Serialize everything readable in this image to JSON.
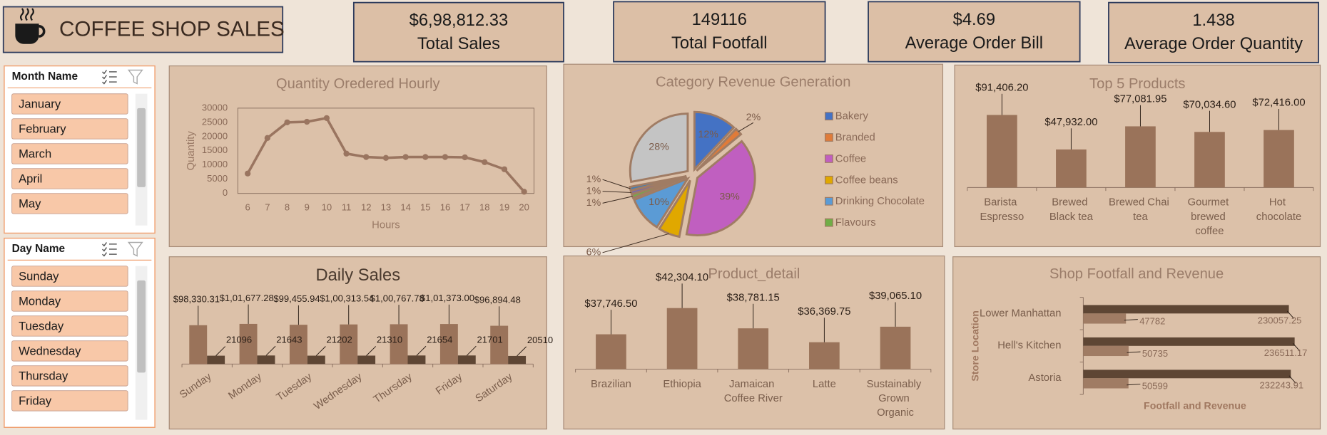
{
  "header": {
    "title": "COFFEE SHOP SALES"
  },
  "kpis": [
    {
      "value": "$6,98,812.33",
      "label": "Total Sales"
    },
    {
      "value": "149116",
      "label": "Total Footfall"
    },
    {
      "value": "$4.69",
      "label": "Average Order Bill"
    },
    {
      "value": "1.438",
      "label": "Average Order Quantity"
    }
  ],
  "slicers": [
    {
      "title": "Month Name",
      "items": [
        "January",
        "February",
        "March",
        "April",
        "May"
      ]
    },
    {
      "title": "Day Name",
      "items": [
        "Sunday",
        "Monday",
        "Tuesday",
        "Wednesday",
        "Thursday",
        "Friday"
      ]
    }
  ],
  "chart_data": [
    {
      "type": "line",
      "title": "Quantity Oredered Hourly",
      "xlabel": "Hours",
      "ylabel": "Quantity",
      "x": [
        6,
        7,
        8,
        9,
        10,
        11,
        12,
        13,
        14,
        15,
        16,
        17,
        18,
        19,
        20
      ],
      "values": [
        7000,
        19500,
        25000,
        25200,
        26500,
        14000,
        12800,
        12500,
        12800,
        12800,
        12800,
        12700,
        11000,
        8500,
        600
      ],
      "color": "#9a7560",
      "xlim": [
        5.5,
        20.5
      ],
      "xticks": [
        6,
        7,
        8,
        9,
        10,
        11,
        12,
        13,
        14,
        15,
        16,
        17,
        18,
        19,
        20
      ],
      "ylim": [
        0,
        30000
      ],
      "yticks": [
        0,
        5000,
        10000,
        15000,
        20000,
        25000,
        30000
      ],
      "grid": false
    },
    {
      "type": "pie",
      "title": "Category Revenue Generation",
      "categories": [
        "Bakery",
        "Branded",
        "Coffee",
        "Coffee beans",
        "Drinking Chocolate",
        "Flavours",
        null,
        null,
        null
      ],
      "values": [
        12,
        2,
        39,
        6,
        10,
        1,
        1,
        1,
        28
      ],
      "value_labels": [
        "12%",
        "2%",
        "39%",
        "6%",
        "10%",
        "1%",
        "1%",
        "1%",
        "28%"
      ],
      "colors": [
        "#4472c4",
        "#e07b39",
        "#c05fc0",
        "#e0a800",
        "#5b9bd5",
        "#70ad47",
        "#7b6aa8",
        "#3f7fb8",
        "#c4c4c4"
      ],
      "legend": "right"
    },
    {
      "type": "bar",
      "title": "Top 5 Products",
      "categories": [
        "Barista Espresso",
        "Brewed Black tea",
        "Brewed Chai tea",
        "Gourmet brewed coffee",
        "Hot chocolate"
      ],
      "values": [
        91406.2,
        47932.0,
        77081.95,
        70034.6,
        72416.0
      ],
      "value_labels": [
        "$91,406.20",
        "$47,932.00",
        "$77,081.95",
        "$70,034.60",
        "$72,416.00"
      ],
      "color": "#9a735a",
      "ylim": [
        0,
        100000
      ]
    },
    {
      "type": "bar",
      "title": "Daily Sales",
      "categories": [
        "Sunday",
        "Monday",
        "Tuesday",
        "Wednesday",
        "Thursday",
        "Friday",
        "Saturday"
      ],
      "series": [
        {
          "color": "#9a735a",
          "values": [
            98330.31,
            101677.28,
            99455.94,
            100313.54,
            100767.78,
            101373.0,
            96894.48
          ],
          "value_labels": [
            "$98,330.31",
            "$1,01,677.28",
            "$99,455.94",
            "$1,00,313.54",
            "$1,00,767.78",
            "$1,01,373.00",
            "$96,894.48"
          ]
        },
        {
          "color": "#5e4634",
          "values": [
            21096,
            21643,
            21202,
            21310,
            21654,
            21701,
            20510
          ]
        }
      ],
      "ylim": [
        0,
        200000
      ]
    },
    {
      "type": "bar",
      "title": "Product_detail",
      "categories": [
        "Brazilian",
        "Ethiopia",
        "Jamaican Coffee River",
        "Latte",
        "Sustainably Grown Organic"
      ],
      "values": [
        37746.5,
        42304.1,
        38781.15,
        36369.75,
        39065.1
      ],
      "value_labels": [
        "$37,746.50",
        "$42,304.10",
        "$38,781.15",
        "$36,369.75",
        "$39,065.10"
      ],
      "color": "#9a735a",
      "ylim": [
        31700,
        47400
      ]
    },
    {
      "type": "barh",
      "title": "Shop Footfall and Revenue",
      "xlabel": "Footfall and Revenue",
      "ylabel": "Store Location",
      "categories": [
        "Lower Manhattan",
        "Hell's Kitchen",
        "Astoria"
      ],
      "series": [
        {
          "color": "#5e4634",
          "values": [
            230057.25,
            236511.17,
            232243.91
          ]
        },
        {
          "color": "#a07c64",
          "values": [
            47782,
            50735,
            50599
          ]
        }
      ],
      "xlim": [
        0,
        250000
      ]
    }
  ]
}
